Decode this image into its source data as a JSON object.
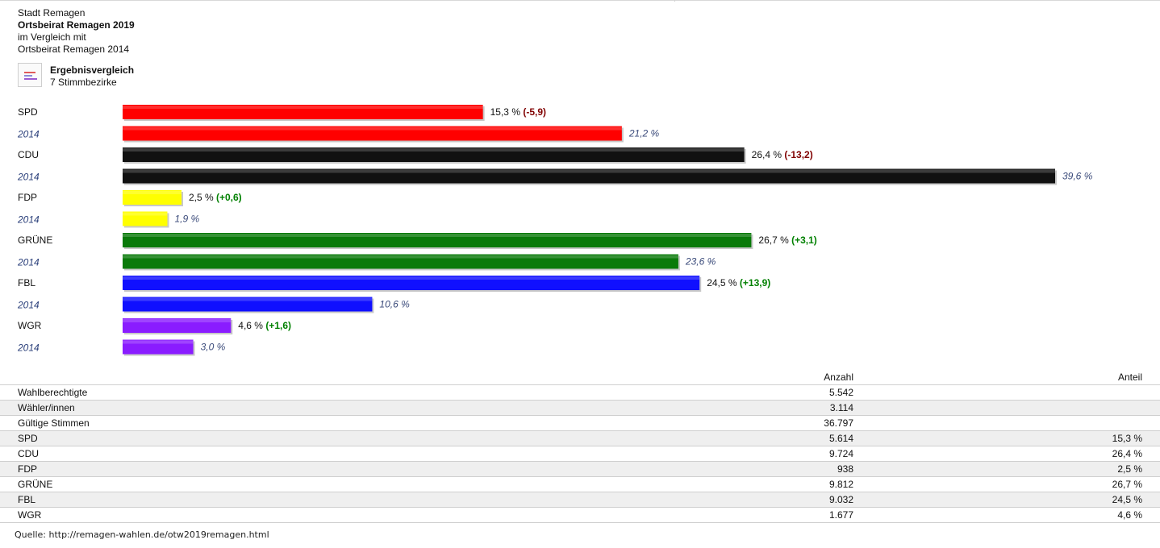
{
  "header": {
    "city": "Stadt Remagen",
    "election": "Ortsbeirat Remagen 2019",
    "compare_prefix": "im Vergleich mit",
    "compare_election": "Ortsbeirat Remagen 2014"
  },
  "legend": {
    "icon": "bar-chart-icon",
    "title": "Ergebnisvergleich",
    "subtitle": "7 Stimmbezirke"
  },
  "chart_data": {
    "type": "bar",
    "orientation": "horizontal",
    "categories": [
      "SPD",
      "CDU",
      "FDP",
      "GRÜNE",
      "FBL",
      "WGR"
    ],
    "previous_label": "2014",
    "xlim": [
      0,
      39.6
    ],
    "series": [
      {
        "name": "",
        "values": [
          15.3,
          26.4,
          2.5,
          26.7,
          24.5,
          4.6
        ],
        "labels": [
          "15,3 %",
          "26,4 %",
          "2,5 %",
          "26,7 %",
          "24,5 %",
          "4,6 %"
        ],
        "diffs": [
          "(-5,9)",
          "(-13,2)",
          "(+0,6)",
          "(+3,1)",
          "(+13,9)",
          "(+1,6)"
        ]
      },
      {
        "name": "2014",
        "values": [
          21.2,
          39.6,
          1.9,
          23.6,
          10.6,
          3.0
        ],
        "labels": [
          "21,2 %",
          "39,6 %",
          "1,9 %",
          "23,6 %",
          "10,6 %",
          "3,0 %"
        ]
      }
    ],
    "colors": [
      "#ff0000",
      "#111111",
      "#ffff00",
      "#0a7a0a",
      "#1010ff",
      "#8a1cff"
    ],
    "diff_colors": {
      "negative": "#800000",
      "positive": "#008000"
    }
  },
  "table": {
    "col_count": "Anzahl",
    "col_share": "Anteil",
    "rows": [
      {
        "name": "Wahlberechtigte",
        "count": "5.542",
        "share": ""
      },
      {
        "name": "Wähler/innen",
        "count": "3.114",
        "share": ""
      },
      {
        "name": "Gültige Stimmen",
        "count": "36.797",
        "share": ""
      },
      {
        "name": "SPD",
        "count": "5.614",
        "share": "15,3 %"
      },
      {
        "name": "CDU",
        "count": "9.724",
        "share": "26,4 %"
      },
      {
        "name": "FDP",
        "count": "938",
        "share": "2,5 %"
      },
      {
        "name": "GRÜNE",
        "count": "9.812",
        "share": "26,7 %"
      },
      {
        "name": "FBL",
        "count": "9.032",
        "share": "24,5 %"
      },
      {
        "name": "WGR",
        "count": "1.677",
        "share": "4,6 %"
      }
    ]
  },
  "source": "Quelle: http://remagen-wahlen.de/otw2019remagen.html"
}
